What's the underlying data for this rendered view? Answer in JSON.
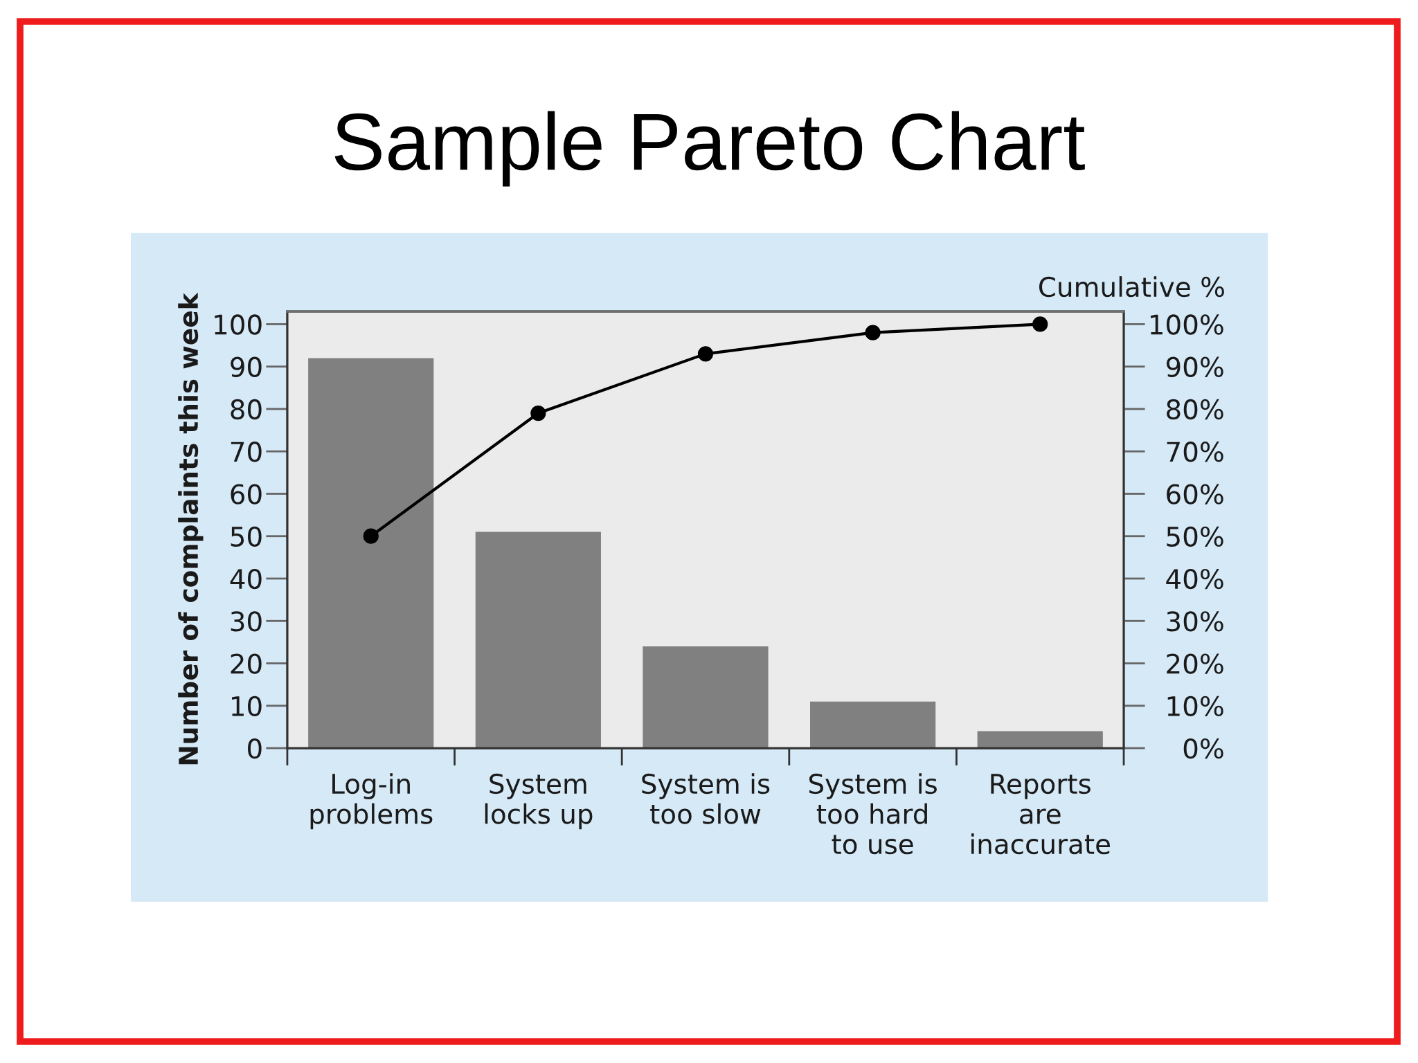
{
  "chart_data": {
    "type": "bar",
    "title": "Sample Pareto Chart",
    "ylabel": "Number of complaints this week",
    "y2label": "Cumulative %",
    "categories": [
      "Log-in\nproblems",
      "System\nlocks up",
      "System is\ntoo slow",
      "System is\ntoo hard\nto use",
      "Reports\nare\ninaccurate"
    ],
    "series": [
      {
        "color": "#808080",
        "values": [
          92,
          51,
          24,
          11,
          4
        ]
      },
      {
        "type": "line",
        "color": "#000000",
        "values": [
          50,
          79,
          93,
          98,
          100
        ]
      }
    ],
    "marker": "circle",
    "line_style": "solid",
    "ylim": [
      0,
      103
    ],
    "yticks": [
      0,
      10,
      20,
      30,
      40,
      50,
      60,
      70,
      80,
      90,
      100
    ],
    "y2lim": [
      0,
      103
    ],
    "y2ticks": [
      {
        "value": 0,
        "label": "0%"
      },
      {
        "value": 10,
        "label": "10%"
      },
      {
        "value": 20,
        "label": "20%"
      },
      {
        "value": 30,
        "label": "30%"
      },
      {
        "value": 40,
        "label": "40%"
      },
      {
        "value": 50,
        "label": "50%"
      },
      {
        "value": 60,
        "label": "60%"
      },
      {
        "value": 70,
        "label": "70%"
      },
      {
        "value": 80,
        "label": "80%"
      },
      {
        "value": 90,
        "label": "90%"
      },
      {
        "value": 100,
        "label": "100%"
      }
    ]
  }
}
